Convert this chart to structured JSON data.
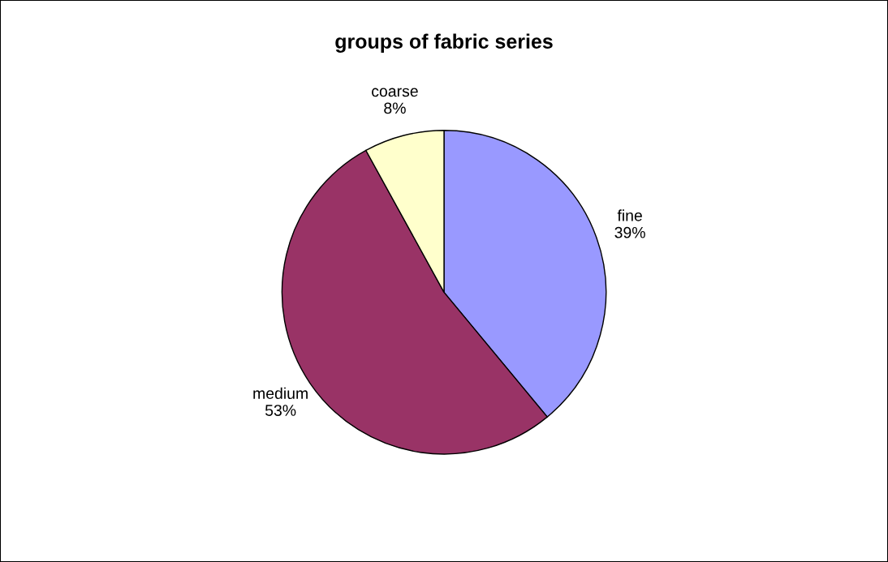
{
  "chart_data": {
    "type": "pie",
    "title": "groups of fabric series",
    "categories": [
      "fine",
      "medium",
      "coarse"
    ],
    "values": [
      39,
      53,
      8
    ],
    "value_labels": [
      "39%",
      "53%",
      "8%"
    ],
    "colors": [
      "#9999ff",
      "#993366",
      "#ffffcc"
    ]
  }
}
